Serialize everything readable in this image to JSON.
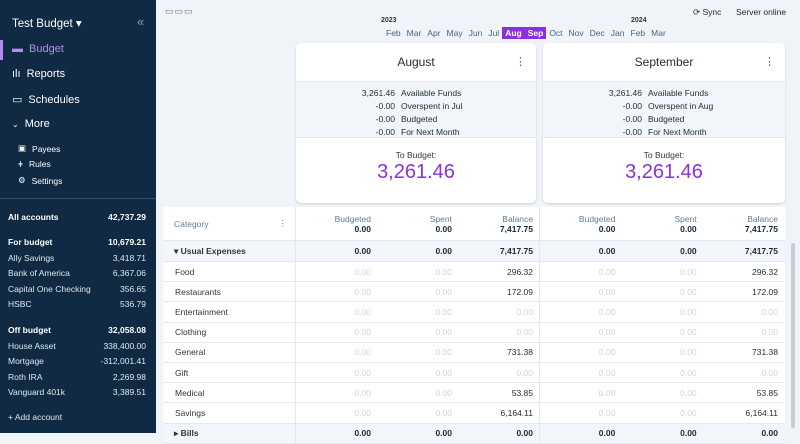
{
  "sidebar": {
    "budget_name": "Test Budget",
    "nav": [
      "Budget",
      "Reports",
      "Schedules",
      "More"
    ],
    "sub": [
      "Payees",
      "Rules",
      "Settings"
    ],
    "all": {
      "name": "All accounts",
      "bal": "42,737.29"
    },
    "for_budget": {
      "name": "For budget",
      "bal": "10,679.21",
      "accounts": [
        [
          "Ally Savings",
          "3,418.71"
        ],
        [
          "Bank of America",
          "6,367.06"
        ],
        [
          "Capital One Checking",
          "356.65"
        ],
        [
          "HSBC",
          "536.79"
        ]
      ]
    },
    "off_budget": {
      "name": "Off budget",
      "bal": "32,058.08",
      "accounts": [
        [
          "House Asset",
          "338,400.00"
        ],
        [
          "Mortgage",
          "-312,001.41"
        ],
        [
          "Roth IRA",
          "2,269.98"
        ],
        [
          "Vanguard 401k",
          "3,389.51"
        ]
      ]
    },
    "add": "+ Add account"
  },
  "header": {
    "sync": "Sync",
    "server": "Server online",
    "years": [
      "2023",
      "2024"
    ],
    "months": [
      "Feb",
      "Mar",
      "Apr",
      "May",
      "Jun",
      "Jul",
      "Aug",
      "Sep",
      "Oct",
      "Nov",
      "Dec",
      "Jan",
      "Feb",
      "Mar"
    ]
  },
  "cards": [
    {
      "month": "August",
      "rows": [
        [
          "3,261.46",
          "Available Funds"
        ],
        [
          "-0.00",
          "Overspent in Jul"
        ],
        [
          "-0.00",
          "Budgeted"
        ],
        [
          "-0.00",
          "For Next Month"
        ]
      ],
      "to_budget_label": "To Budget:",
      "to_budget": "3,261.46"
    },
    {
      "month": "September",
      "rows": [
        [
          "3,261.46",
          "Available Funds"
        ],
        [
          "-0.00",
          "Overspent in Aug"
        ],
        [
          "-0.00",
          "Budgeted"
        ],
        [
          "-0.00",
          "For Next Month"
        ]
      ],
      "to_budget_label": "To Budget:",
      "to_budget": "3,261.46"
    }
  ],
  "table": {
    "category_label": "Category",
    "col_labels": [
      "Budgeted",
      "Spent",
      "Balance"
    ],
    "totals": [
      [
        "0.00",
        "0.00",
        "7,417.75"
      ],
      [
        "0.00",
        "0.00",
        "7,417.75"
      ]
    ],
    "rows": [
      {
        "name": "▾ Usual Expenses",
        "group": true,
        "v": [
          "0.00",
          "0.00",
          "7,417.75",
          "0.00",
          "0.00",
          "7,417.75"
        ]
      },
      {
        "name": "Food",
        "v": [
          "0.00",
          "0.00",
          "296.32",
          "0.00",
          "0.00",
          "296.32"
        ]
      },
      {
        "name": "Restaurants",
        "v": [
          "0.00",
          "0.00",
          "172.09",
          "0.00",
          "0.00",
          "172.09"
        ]
      },
      {
        "name": "Entertainment",
        "v": [
          "0.00",
          "0.00",
          "0.00",
          "0.00",
          "0.00",
          "0.00"
        ]
      },
      {
        "name": "Clothing",
        "v": [
          "0.00",
          "0.00",
          "0.00",
          "0.00",
          "0.00",
          "0.00"
        ]
      },
      {
        "name": "General",
        "v": [
          "0.00",
          "0.00",
          "731.38",
          "0.00",
          "0.00",
          "731.38"
        ]
      },
      {
        "name": "Gift",
        "v": [
          "0.00",
          "0.00",
          "0.00",
          "0.00",
          "0.00",
          "0.00"
        ]
      },
      {
        "name": "Medical",
        "v": [
          "0.00",
          "0.00",
          "53.85",
          "0.00",
          "0.00",
          "53.85"
        ]
      },
      {
        "name": "Savings",
        "v": [
          "0.00",
          "0.00",
          "6,164.11",
          "0.00",
          "0.00",
          "6,164.11"
        ]
      },
      {
        "name": "▸ Bills",
        "group": true,
        "v": [
          "0.00",
          "0.00",
          "0.00",
          "0.00",
          "0.00",
          "0.00"
        ]
      }
    ]
  }
}
